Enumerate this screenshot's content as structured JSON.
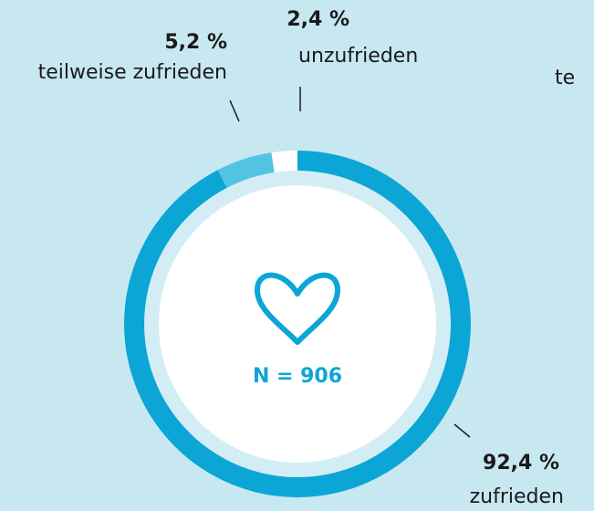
{
  "chart_data": {
    "type": "donut",
    "categories": [
      "zufrieden",
      "teilweise zufrieden",
      "unzufrieden"
    ],
    "values": [
      92.4,
      5.2,
      2.4
    ],
    "value_labels": [
      "92,4 %",
      "5,2 %",
      "2,4 %"
    ],
    "colors": [
      "#0ba6d6",
      "#52c3e3",
      "#ffffff"
    ],
    "center_text": "N = 906",
    "clipped_text": "te"
  }
}
